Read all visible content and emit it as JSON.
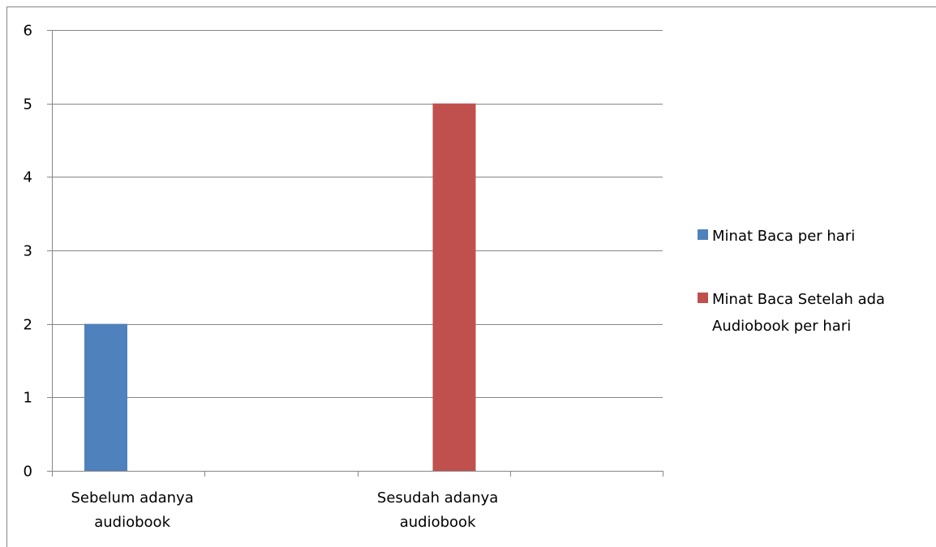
{
  "chart_data": {
    "type": "bar",
    "categories": [
      [
        "Sebelum adanya",
        "audiobook"
      ],
      [
        "Sesudah adanya",
        "audiobook"
      ]
    ],
    "series": [
      {
        "name": "Minat Baca per hari",
        "values": [
          2,
          0
        ],
        "color": "#4F81BD"
      },
      {
        "name": "Minat Baca Setelah ada Audiobook per hari",
        "legend_lines": [
          "Minat Baca Setelah ada",
          "Audiobook per hari"
        ],
        "values": [
          0,
          5
        ],
        "color": "#C0504D"
      }
    ],
    "ylim": [
      0,
      6
    ],
    "yticks": [
      "0",
      "1",
      "2",
      "3",
      "4",
      "5",
      "6"
    ],
    "grid": true,
    "legend_position": "right"
  }
}
